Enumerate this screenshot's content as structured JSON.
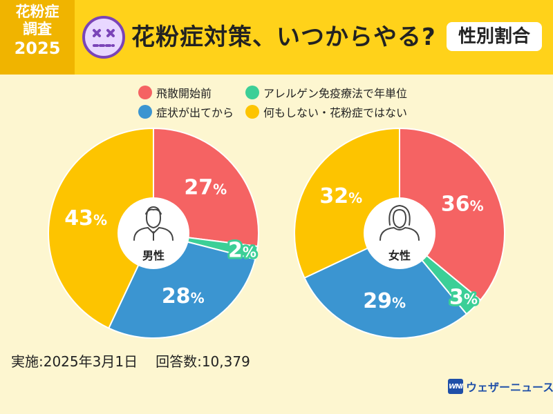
{
  "header": {
    "badge_line1": "花粉症",
    "badge_line2": "調査",
    "badge_year": "2025",
    "title": "花粉症対策、いつからやる?",
    "tag": "性別割合",
    "face_icon": "dizzy-face-icon"
  },
  "colors": {
    "red": "#f56363",
    "green": "#3ccf97",
    "blue": "#3b95d1",
    "yellow": "#fdc400"
  },
  "chart_data": {
    "type": "pie",
    "legend": [
      {
        "label": "飛散開始前",
        "color": "#f56363"
      },
      {
        "label": "アレルゲン免疫療法で年単位",
        "color": "#3ccf97"
      },
      {
        "label": "症状が出てから",
        "color": "#3b95d1"
      },
      {
        "label": "何もしない・花粉症ではない",
        "color": "#fdc400"
      }
    ],
    "charts": [
      {
        "center_label": "男性",
        "icon": "male-person-icon",
        "slices": [
          {
            "category": "飛散開始前",
            "value": 27,
            "label": "27%"
          },
          {
            "category": "アレルゲン免疫療法で年単位",
            "value": 2,
            "label": "2%"
          },
          {
            "category": "症状が出てから",
            "value": 28,
            "label": "28%"
          },
          {
            "category": "何もしない・花粉症ではない",
            "value": 43,
            "label": "43%"
          }
        ]
      },
      {
        "center_label": "女性",
        "icon": "female-person-icon",
        "slices": [
          {
            "category": "飛散開始前",
            "value": 36,
            "label": "36%"
          },
          {
            "category": "アレルゲン免疫療法で年単位",
            "value": 3,
            "label": "3%"
          },
          {
            "category": "症状が出てから",
            "value": 29,
            "label": "29%"
          },
          {
            "category": "何もしない・花粉症ではない",
            "value": 32,
            "label": "32%"
          }
        ]
      }
    ]
  },
  "footer": {
    "date": "実施:2025年3月1日",
    "responses": "回答数:10,379"
  },
  "logo": {
    "mark": "WNI",
    "text": "ウェザーニュース"
  }
}
